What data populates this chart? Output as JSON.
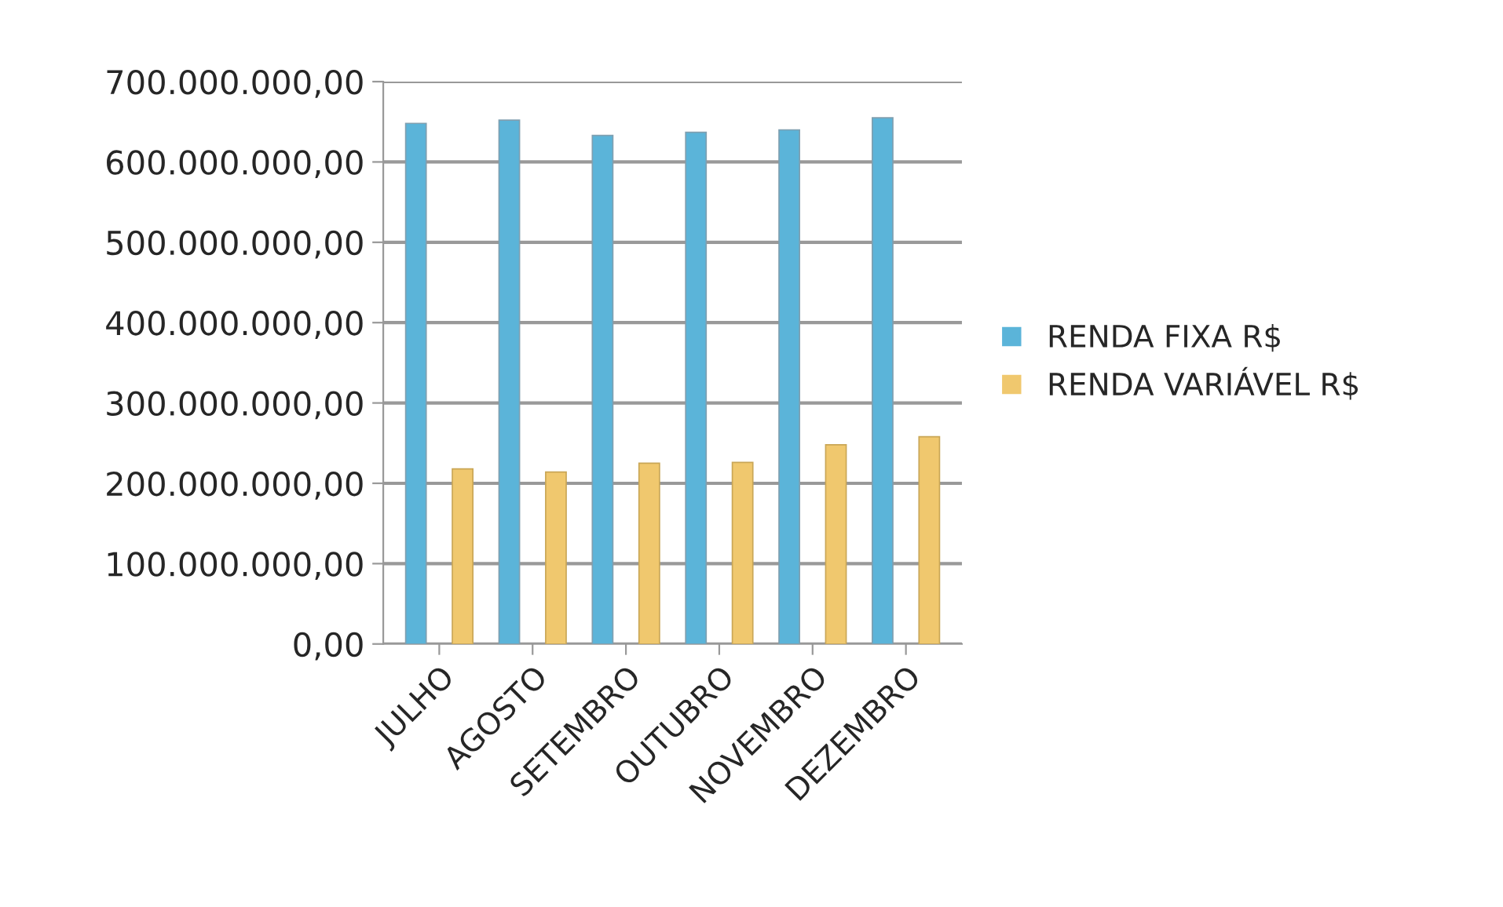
{
  "chart_data": {
    "type": "bar",
    "categories": [
      "JULHO",
      "AGOSTO",
      "SETEMBRO",
      "OUTUBRO",
      "NOVEMBRO",
      "DEZEMBRO"
    ],
    "series": [
      {
        "name": "RENDA FIXA R$",
        "color": "#5bb4d9",
        "values": [
          648000000,
          652000000,
          633000000,
          637000000,
          640000000,
          655000000
        ]
      },
      {
        "name": "RENDA VARIÁVEL R$",
        "color": "#f0c86e",
        "values": [
          218000000,
          214000000,
          225000000,
          226000000,
          248000000,
          258000000
        ]
      }
    ],
    "ylim": [
      0,
      700000000
    ],
    "yticks": [
      {
        "value": 0,
        "label": "0,00"
      },
      {
        "value": 100000000,
        "label": "100.000.000,00"
      },
      {
        "value": 200000000,
        "label": "200.000.000,00"
      },
      {
        "value": 300000000,
        "label": "300.000.000,00"
      },
      {
        "value": 400000000,
        "label": "400.000.000,00"
      },
      {
        "value": 500000000,
        "label": "500.000.000,00"
      },
      {
        "value": 600000000,
        "label": "600.000.000,00"
      },
      {
        "value": 700000000,
        "label": "700.000.000,00"
      }
    ],
    "grid": "y",
    "legend": "right"
  }
}
